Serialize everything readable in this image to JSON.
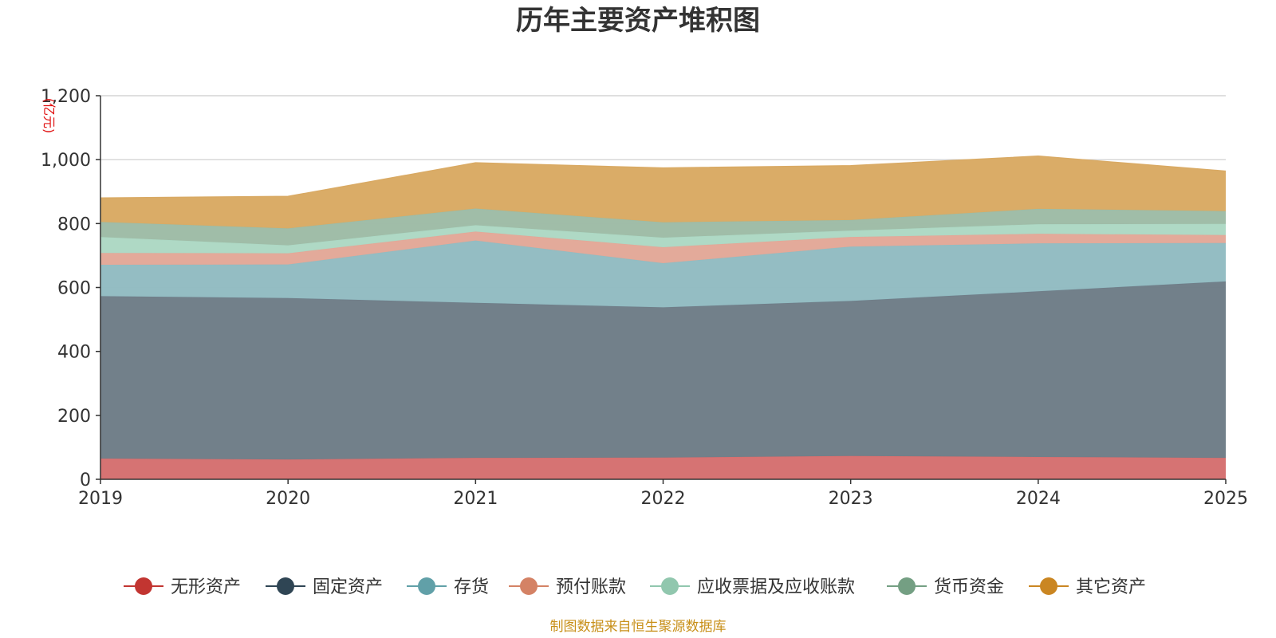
{
  "chart_data": {
    "type": "area",
    "stacked": true,
    "title": "历年主要资产堆积图",
    "unit_label": "(亿元)",
    "x": [
      "2019",
      "2020",
      "2021",
      "2022",
      "2023",
      "2024",
      "2025"
    ],
    "ylim": [
      0,
      1200
    ],
    "yticks": [
      0,
      200,
      400,
      600,
      800,
      1000,
      1200
    ],
    "ytick_labels": [
      "0",
      "200",
      "400",
      "600",
      "800",
      "1,000",
      "1,200"
    ],
    "grid": true,
    "legend_position": "bottom",
    "series": [
      {
        "name": "无形资产",
        "color": "#c23531",
        "fill": "#d57070",
        "values": [
          65,
          62,
          67,
          68,
          73,
          70,
          67
        ]
      },
      {
        "name": "固定资产",
        "color": "#2f4554",
        "fill": "#6f7d88",
        "values": [
          508,
          505,
          485,
          470,
          485,
          518,
          552
        ]
      },
      {
        "name": "存货",
        "color": "#61a0a8",
        "fill": "#92bcc2",
        "values": [
          98,
          105,
          195,
          138,
          170,
          150,
          120
        ]
      },
      {
        "name": "预付账款",
        "color": "#d48265",
        "fill": "#e2a898",
        "values": [
          37,
          35,
          28,
          50,
          30,
          30,
          25
        ]
      },
      {
        "name": "应收票据及应收账款",
        "color": "#91c7ae",
        "fill": "#add8c4",
        "values": [
          50,
          25,
          20,
          30,
          20,
          30,
          35
        ]
      },
      {
        "name": "货币资金",
        "color": "#749f83",
        "fill": "#9ebca6",
        "values": [
          47,
          53,
          52,
          48,
          33,
          48,
          40
        ]
      },
      {
        "name": "其它资产",
        "color": "#ca8622",
        "fill": "#d9aa64",
        "values": [
          75,
          100,
          143,
          170,
          170,
          165,
          125
        ]
      }
    ],
    "source": "制图数据来自恒生聚源数据库"
  }
}
